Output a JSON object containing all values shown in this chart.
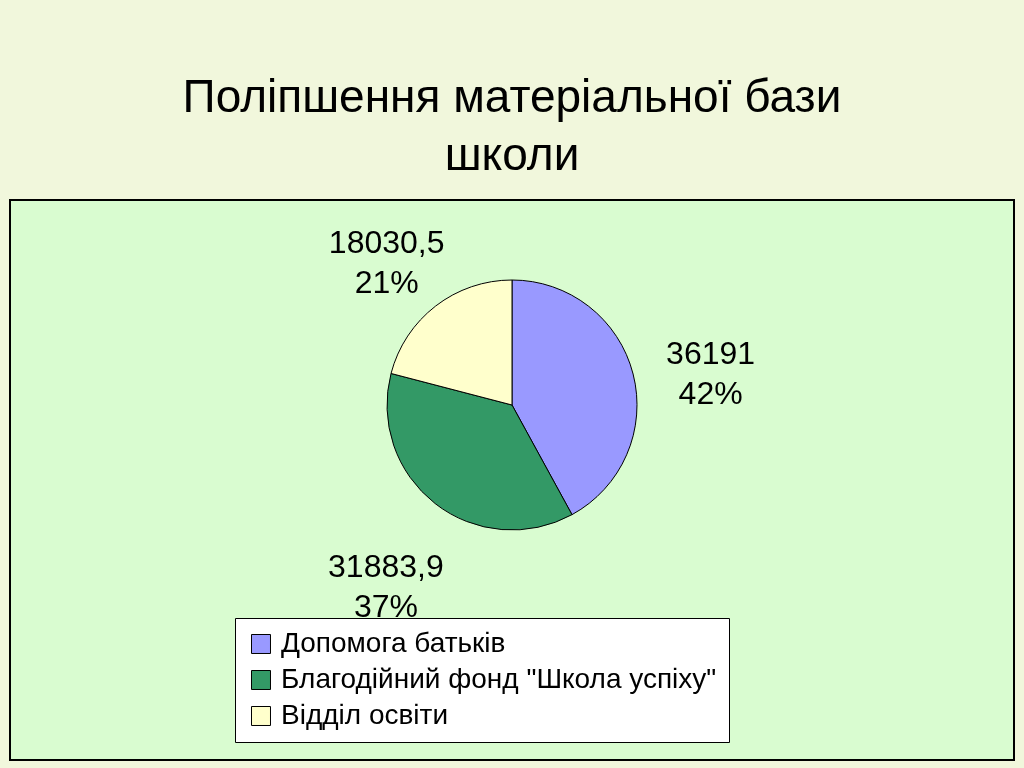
{
  "chart_data": {
    "type": "pie",
    "title": "Поліпшення матеріальної бази школи",
    "categories": [
      "Допомога батьків",
      "Благодійний фонд \"Школа успіху\"",
      "Відділ освіти"
    ],
    "values": [
      36191,
      31883.9,
      18030.5
    ],
    "colors": [
      "#9999ff",
      "#339966",
      "#ffffcc"
    ],
    "value_labels": [
      "36191\n42%",
      "31883,9\n37%",
      "18030,5\n21%"
    ],
    "legend": "bottom"
  }
}
